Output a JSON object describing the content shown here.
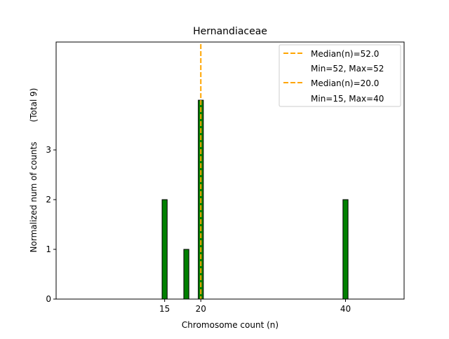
{
  "chart_data": {
    "type": "bar",
    "title": "Hernandiaceae",
    "xlabel": "Chromosome count (n)",
    "ylabel": "Normalized num of counts",
    "ylabel_total": "(Total 9)",
    "x": [
      15,
      18,
      20,
      40
    ],
    "values": [
      2,
      1,
      4,
      2
    ],
    "bar_width": 0.7,
    "bar_color": "#008000",
    "xlim": [
      0,
      48.1
    ],
    "ylim": [
      0,
      5.17
    ],
    "xticks": [
      15,
      20,
      40
    ],
    "yticks": [
      0,
      1,
      2,
      3
    ],
    "grid": false,
    "median_lines": [
      {
        "x": 52,
        "color": "#FFA500"
      },
      {
        "x": 20,
        "color": "#FFA500"
      }
    ],
    "legend": {
      "placement": "top-right",
      "entries": [
        {
          "label": "Median(n)=52.0",
          "sub": "Min=52, Max=52",
          "color": "#FFA500"
        },
        {
          "label": "Median(n)=20.0",
          "sub": "Min=15, Max=40",
          "color": "#FFA500"
        }
      ]
    }
  }
}
